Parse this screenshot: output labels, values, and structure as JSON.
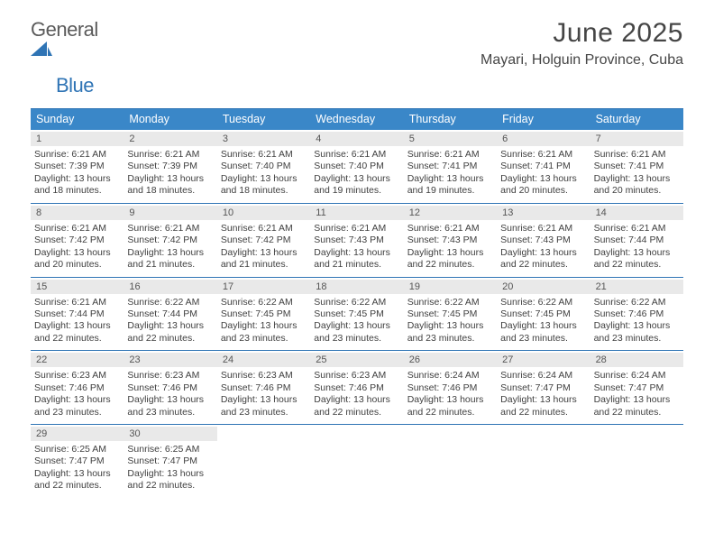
{
  "brand": {
    "word1": "General",
    "word2": "Blue"
  },
  "colors": {
    "accent": "#3a87c8",
    "accent_border": "#2f74b5",
    "strip": "#e9e9e9",
    "text": "#404040"
  },
  "title": "June 2025",
  "location": "Mayari, Holguin Province, Cuba",
  "weekdays": [
    "Sunday",
    "Monday",
    "Tuesday",
    "Wednesday",
    "Thursday",
    "Friday",
    "Saturday"
  ],
  "weeks": [
    [
      {
        "n": "1",
        "sr": "Sunrise: 6:21 AM",
        "ss": "Sunset: 7:39 PM",
        "d1": "Daylight: 13 hours",
        "d2": "and 18 minutes."
      },
      {
        "n": "2",
        "sr": "Sunrise: 6:21 AM",
        "ss": "Sunset: 7:39 PM",
        "d1": "Daylight: 13 hours",
        "d2": "and 18 minutes."
      },
      {
        "n": "3",
        "sr": "Sunrise: 6:21 AM",
        "ss": "Sunset: 7:40 PM",
        "d1": "Daylight: 13 hours",
        "d2": "and 18 minutes."
      },
      {
        "n": "4",
        "sr": "Sunrise: 6:21 AM",
        "ss": "Sunset: 7:40 PM",
        "d1": "Daylight: 13 hours",
        "d2": "and 19 minutes."
      },
      {
        "n": "5",
        "sr": "Sunrise: 6:21 AM",
        "ss": "Sunset: 7:41 PM",
        "d1": "Daylight: 13 hours",
        "d2": "and 19 minutes."
      },
      {
        "n": "6",
        "sr": "Sunrise: 6:21 AM",
        "ss": "Sunset: 7:41 PM",
        "d1": "Daylight: 13 hours",
        "d2": "and 20 minutes."
      },
      {
        "n": "7",
        "sr": "Sunrise: 6:21 AM",
        "ss": "Sunset: 7:41 PM",
        "d1": "Daylight: 13 hours",
        "d2": "and 20 minutes."
      }
    ],
    [
      {
        "n": "8",
        "sr": "Sunrise: 6:21 AM",
        "ss": "Sunset: 7:42 PM",
        "d1": "Daylight: 13 hours",
        "d2": "and 20 minutes."
      },
      {
        "n": "9",
        "sr": "Sunrise: 6:21 AM",
        "ss": "Sunset: 7:42 PM",
        "d1": "Daylight: 13 hours",
        "d2": "and 21 minutes."
      },
      {
        "n": "10",
        "sr": "Sunrise: 6:21 AM",
        "ss": "Sunset: 7:42 PM",
        "d1": "Daylight: 13 hours",
        "d2": "and 21 minutes."
      },
      {
        "n": "11",
        "sr": "Sunrise: 6:21 AM",
        "ss": "Sunset: 7:43 PM",
        "d1": "Daylight: 13 hours",
        "d2": "and 21 minutes."
      },
      {
        "n": "12",
        "sr": "Sunrise: 6:21 AM",
        "ss": "Sunset: 7:43 PM",
        "d1": "Daylight: 13 hours",
        "d2": "and 22 minutes."
      },
      {
        "n": "13",
        "sr": "Sunrise: 6:21 AM",
        "ss": "Sunset: 7:43 PM",
        "d1": "Daylight: 13 hours",
        "d2": "and 22 minutes."
      },
      {
        "n": "14",
        "sr": "Sunrise: 6:21 AM",
        "ss": "Sunset: 7:44 PM",
        "d1": "Daylight: 13 hours",
        "d2": "and 22 minutes."
      }
    ],
    [
      {
        "n": "15",
        "sr": "Sunrise: 6:21 AM",
        "ss": "Sunset: 7:44 PM",
        "d1": "Daylight: 13 hours",
        "d2": "and 22 minutes."
      },
      {
        "n": "16",
        "sr": "Sunrise: 6:22 AM",
        "ss": "Sunset: 7:44 PM",
        "d1": "Daylight: 13 hours",
        "d2": "and 22 minutes."
      },
      {
        "n": "17",
        "sr": "Sunrise: 6:22 AM",
        "ss": "Sunset: 7:45 PM",
        "d1": "Daylight: 13 hours",
        "d2": "and 23 minutes."
      },
      {
        "n": "18",
        "sr": "Sunrise: 6:22 AM",
        "ss": "Sunset: 7:45 PM",
        "d1": "Daylight: 13 hours",
        "d2": "and 23 minutes."
      },
      {
        "n": "19",
        "sr": "Sunrise: 6:22 AM",
        "ss": "Sunset: 7:45 PM",
        "d1": "Daylight: 13 hours",
        "d2": "and 23 minutes."
      },
      {
        "n": "20",
        "sr": "Sunrise: 6:22 AM",
        "ss": "Sunset: 7:45 PM",
        "d1": "Daylight: 13 hours",
        "d2": "and 23 minutes."
      },
      {
        "n": "21",
        "sr": "Sunrise: 6:22 AM",
        "ss": "Sunset: 7:46 PM",
        "d1": "Daylight: 13 hours",
        "d2": "and 23 minutes."
      }
    ],
    [
      {
        "n": "22",
        "sr": "Sunrise: 6:23 AM",
        "ss": "Sunset: 7:46 PM",
        "d1": "Daylight: 13 hours",
        "d2": "and 23 minutes."
      },
      {
        "n": "23",
        "sr": "Sunrise: 6:23 AM",
        "ss": "Sunset: 7:46 PM",
        "d1": "Daylight: 13 hours",
        "d2": "and 23 minutes."
      },
      {
        "n": "24",
        "sr": "Sunrise: 6:23 AM",
        "ss": "Sunset: 7:46 PM",
        "d1": "Daylight: 13 hours",
        "d2": "and 23 minutes."
      },
      {
        "n": "25",
        "sr": "Sunrise: 6:23 AM",
        "ss": "Sunset: 7:46 PM",
        "d1": "Daylight: 13 hours",
        "d2": "and 22 minutes."
      },
      {
        "n": "26",
        "sr": "Sunrise: 6:24 AM",
        "ss": "Sunset: 7:46 PM",
        "d1": "Daylight: 13 hours",
        "d2": "and 22 minutes."
      },
      {
        "n": "27",
        "sr": "Sunrise: 6:24 AM",
        "ss": "Sunset: 7:47 PM",
        "d1": "Daylight: 13 hours",
        "d2": "and 22 minutes."
      },
      {
        "n": "28",
        "sr": "Sunrise: 6:24 AM",
        "ss": "Sunset: 7:47 PM",
        "d1": "Daylight: 13 hours",
        "d2": "and 22 minutes."
      }
    ],
    [
      {
        "n": "29",
        "sr": "Sunrise: 6:25 AM",
        "ss": "Sunset: 7:47 PM",
        "d1": "Daylight: 13 hours",
        "d2": "and 22 minutes."
      },
      {
        "n": "30",
        "sr": "Sunrise: 6:25 AM",
        "ss": "Sunset: 7:47 PM",
        "d1": "Daylight: 13 hours",
        "d2": "and 22 minutes."
      },
      null,
      null,
      null,
      null,
      null
    ]
  ]
}
